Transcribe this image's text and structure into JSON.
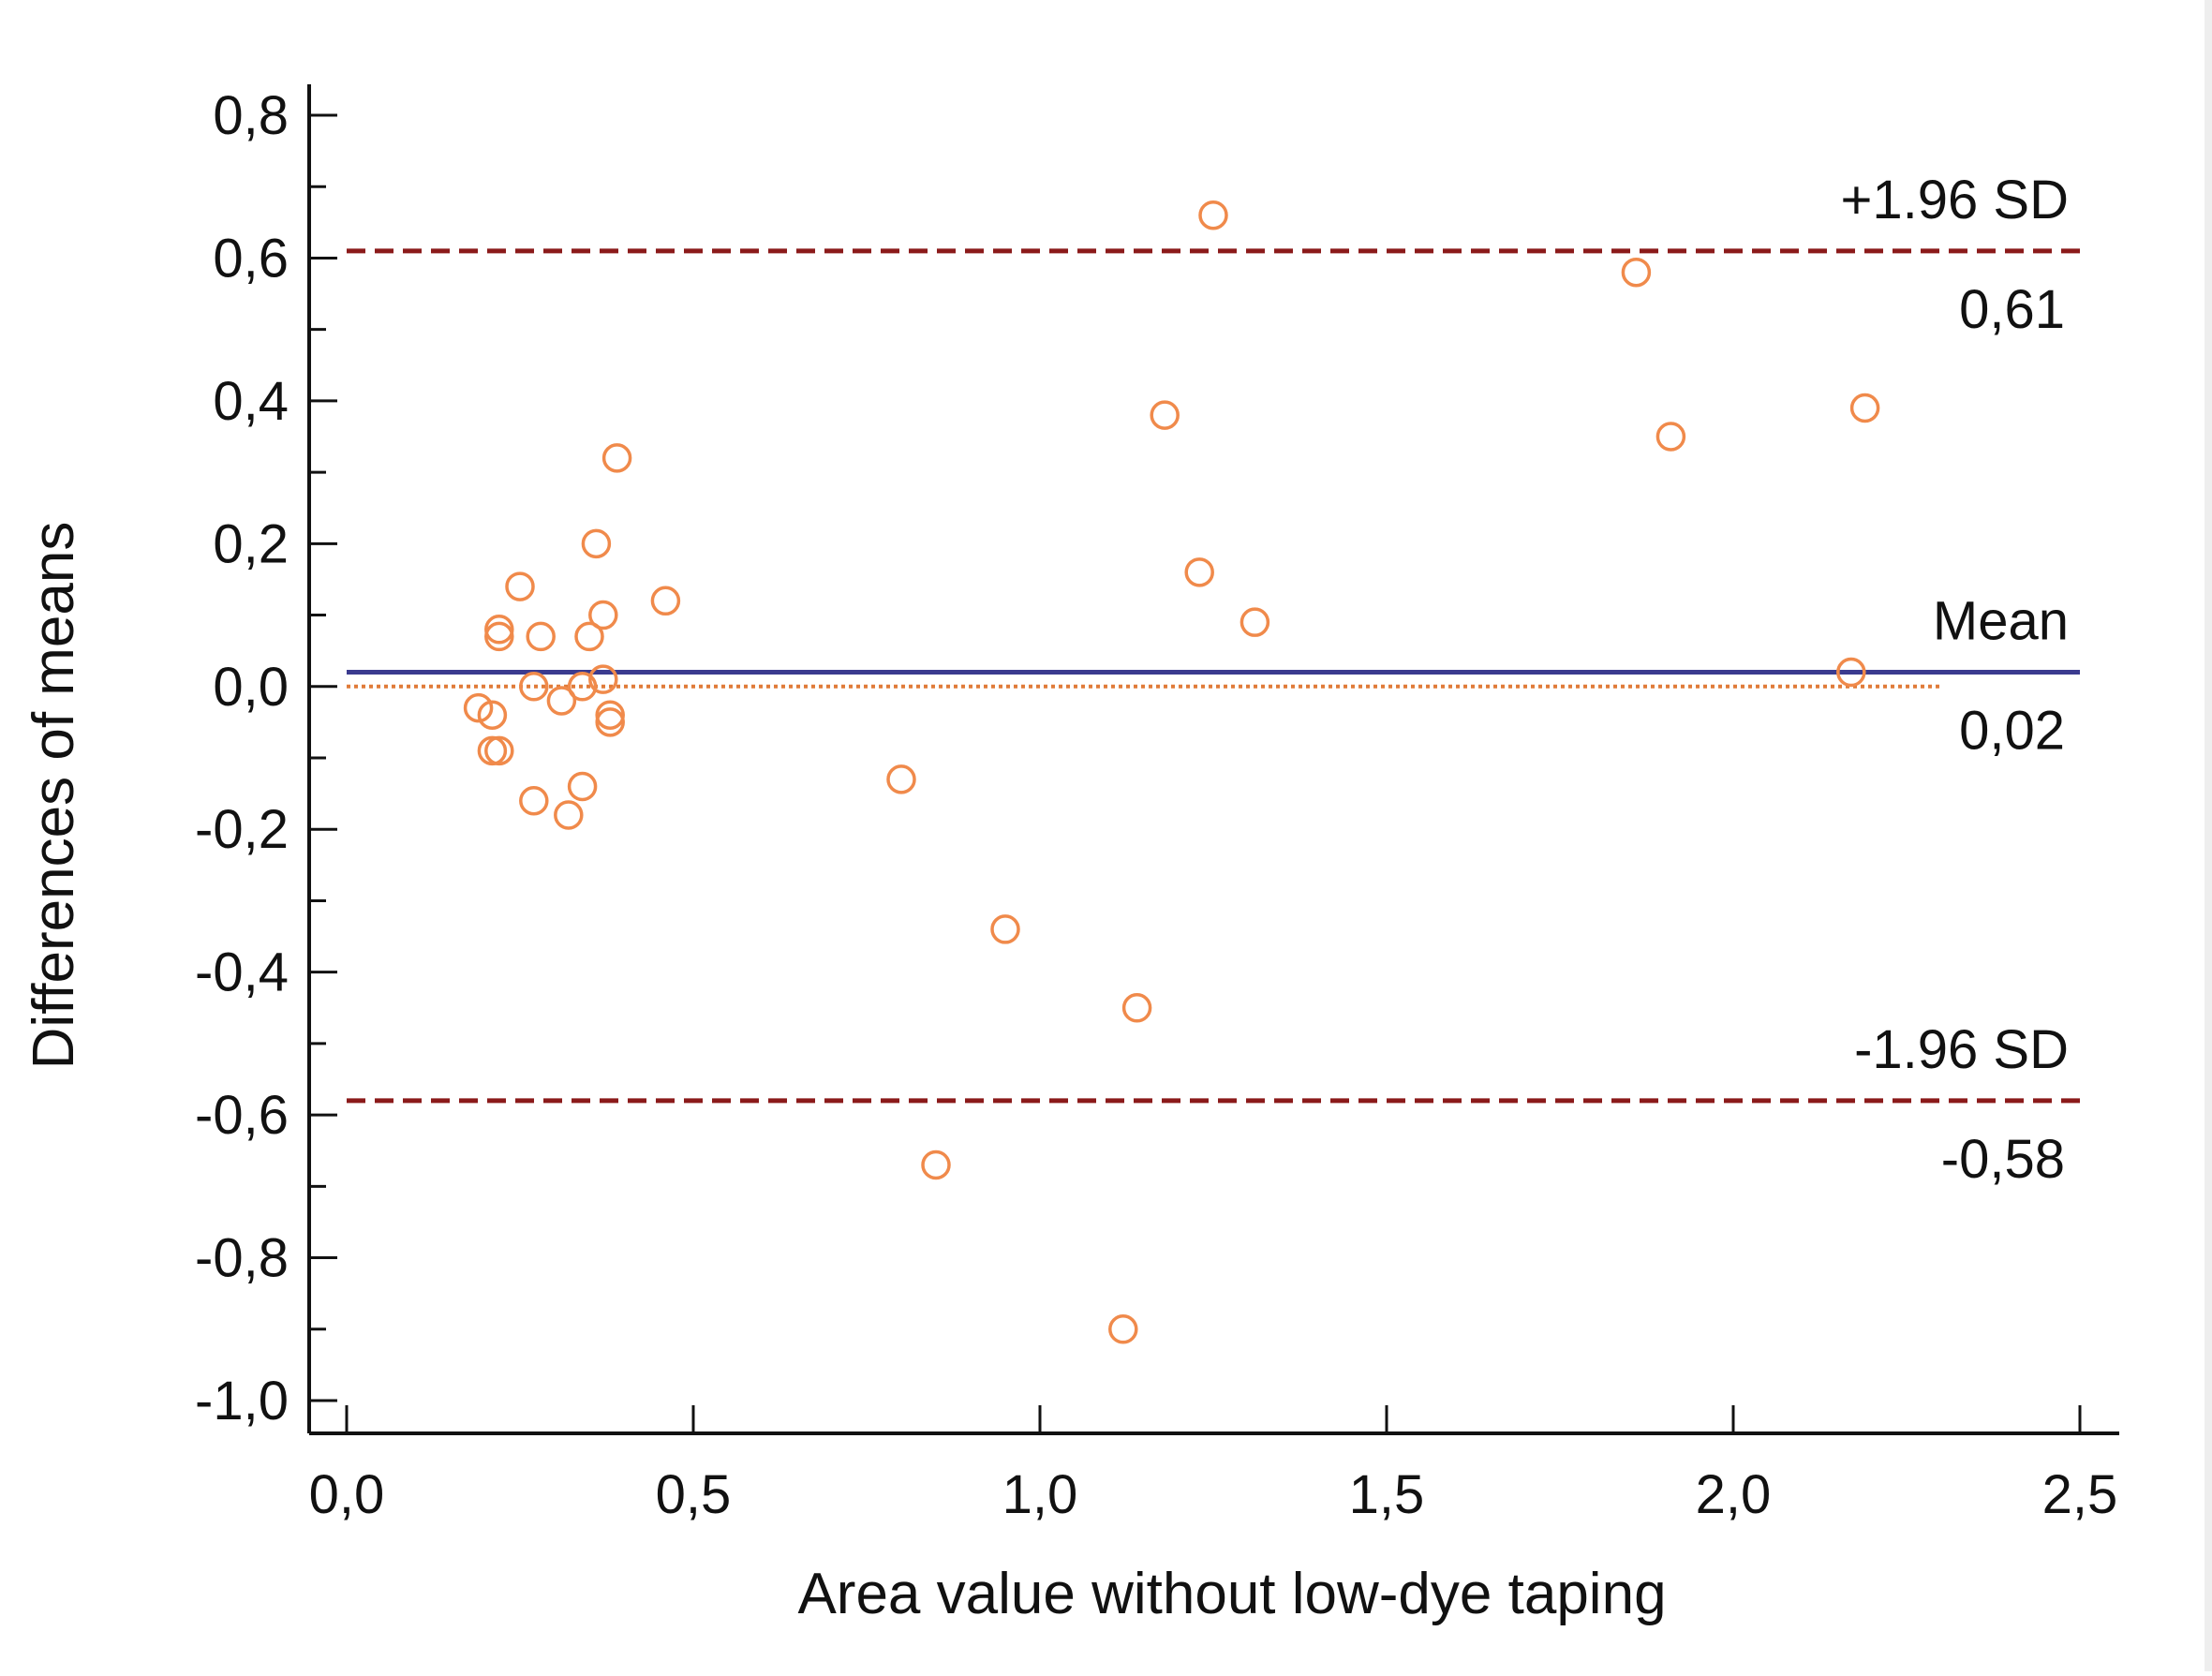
{
  "chart_data": {
    "type": "scatter",
    "title": "",
    "xlabel": "Area value without low-dye taping",
    "ylabel": "Differences of means",
    "xlim": [
      0.0,
      2.5
    ],
    "ylim": [
      -1.0,
      0.8
    ],
    "x_ticks": [
      {
        "value": 0.0,
        "label": "0,0"
      },
      {
        "value": 0.5,
        "label": "0,5"
      },
      {
        "value": 1.0,
        "label": "1,0"
      },
      {
        "value": 1.5,
        "label": "1,5"
      },
      {
        "value": 2.0,
        "label": "2,0"
      },
      {
        "value": 2.5,
        "label": "2,5"
      }
    ],
    "y_ticks": [
      {
        "value": 0.8,
        "label": "0,8"
      },
      {
        "value": 0.6,
        "label": "0,6"
      },
      {
        "value": 0.4,
        "label": "0,4"
      },
      {
        "value": 0.2,
        "label": "0,2"
      },
      {
        "value": 0.0,
        "label": "0,0"
      },
      {
        "value": -0.2,
        "label": "-0,2"
      },
      {
        "value": -0.4,
        "label": "-0,4"
      },
      {
        "value": -0.6,
        "label": "-0,6"
      },
      {
        "value": -0.8,
        "label": "-0,8"
      },
      {
        "value": -1.0,
        "label": "-1,0"
      }
    ],
    "reference_lines": [
      {
        "name": "upper-loa",
        "label": "+1.96 SD",
        "value_label": "0,61",
        "y": 0.61,
        "style": "dashed",
        "color": "#8b1a1a"
      },
      {
        "name": "mean",
        "label": "Mean",
        "value_label": "0,02",
        "y": 0.02,
        "style": "solid",
        "color": "#3b3b8f"
      },
      {
        "name": "lower-loa",
        "label": "-1.96 SD",
        "value_label": "-0,58",
        "y": -0.58,
        "style": "dashed",
        "color": "#8b1a1a"
      }
    ],
    "zero_line": {
      "y": 0.0,
      "x_range": [
        0.0,
        2.3
      ],
      "style": "dotted",
      "color": "#e07b39"
    },
    "marker_color": "#f08a4b",
    "points": [
      {
        "x": 0.19,
        "y": -0.03
      },
      {
        "x": 0.21,
        "y": -0.04
      },
      {
        "x": 0.21,
        "y": -0.09
      },
      {
        "x": 0.22,
        "y": -0.09
      },
      {
        "x": 0.22,
        "y": 0.08
      },
      {
        "x": 0.22,
        "y": 0.07
      },
      {
        "x": 0.25,
        "y": 0.14
      },
      {
        "x": 0.27,
        "y": 0.0
      },
      {
        "x": 0.27,
        "y": -0.16
      },
      {
        "x": 0.28,
        "y": 0.07
      },
      {
        "x": 0.31,
        "y": -0.02
      },
      {
        "x": 0.32,
        "y": -0.18
      },
      {
        "x": 0.34,
        "y": -0.14
      },
      {
        "x": 0.34,
        "y": 0.0
      },
      {
        "x": 0.35,
        "y": 0.07
      },
      {
        "x": 0.36,
        "y": 0.2
      },
      {
        "x": 0.37,
        "y": 0.1
      },
      {
        "x": 0.37,
        "y": 0.01
      },
      {
        "x": 0.38,
        "y": -0.05
      },
      {
        "x": 0.38,
        "y": -0.04
      },
      {
        "x": 0.39,
        "y": 0.32
      },
      {
        "x": 0.46,
        "y": 0.12
      },
      {
        "x": 0.8,
        "y": -0.13
      },
      {
        "x": 0.85,
        "y": -0.67
      },
      {
        "x": 0.95,
        "y": -0.34
      },
      {
        "x": 1.12,
        "y": -0.9
      },
      {
        "x": 1.14,
        "y": -0.45
      },
      {
        "x": 1.18,
        "y": 0.38
      },
      {
        "x": 1.23,
        "y": 0.16
      },
      {
        "x": 1.25,
        "y": 0.66
      },
      {
        "x": 1.31,
        "y": 0.09
      },
      {
        "x": 1.86,
        "y": 0.58
      },
      {
        "x": 1.91,
        "y": 0.35
      },
      {
        "x": 2.17,
        "y": 0.02
      },
      {
        "x": 2.19,
        "y": 0.39
      }
    ]
  }
}
